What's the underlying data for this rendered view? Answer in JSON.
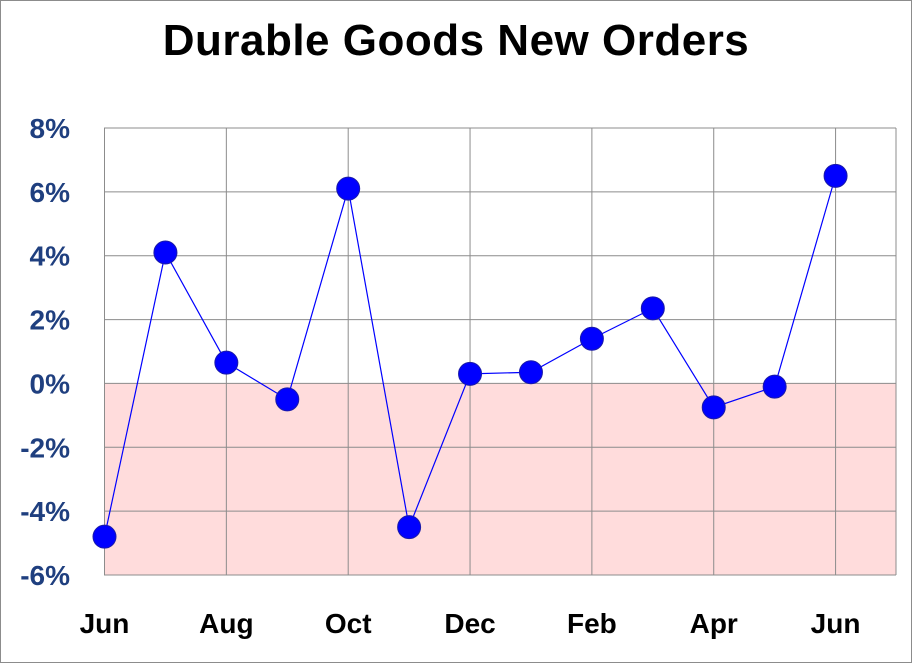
{
  "chart_data": {
    "type": "line",
    "title": "Durable Goods New Orders",
    "xlabel": "",
    "ylabel": "",
    "ylim": [
      -6,
      8
    ],
    "yticks": [
      8,
      6,
      4,
      2,
      0,
      -2,
      -4,
      -6
    ],
    "ytick_labels": [
      "8%",
      "6%",
      "4%",
      "2%",
      "0%",
      "-2%",
      "-4%",
      "-6%"
    ],
    "x_tick_labels": [
      "Jun",
      "Aug",
      "Oct",
      "Dec",
      "Feb",
      "Apr",
      "Jun"
    ],
    "grid": true,
    "negative_region_shaded": true,
    "series": [
      {
        "values": [
          -4.8,
          4.1,
          0.65,
          -0.5,
          6.1,
          -4.5,
          0.3,
          0.35,
          1.4,
          2.35,
          -0.75,
          -0.1,
          6.5
        ]
      }
    ],
    "colors": {
      "marker": "#0000ff",
      "line": "#0000ff",
      "negative_fill": "#ffdcdc",
      "grid": "#8c8c8c",
      "ytick_text": "#1f3f7f",
      "xtick_text": "#000000"
    }
  }
}
